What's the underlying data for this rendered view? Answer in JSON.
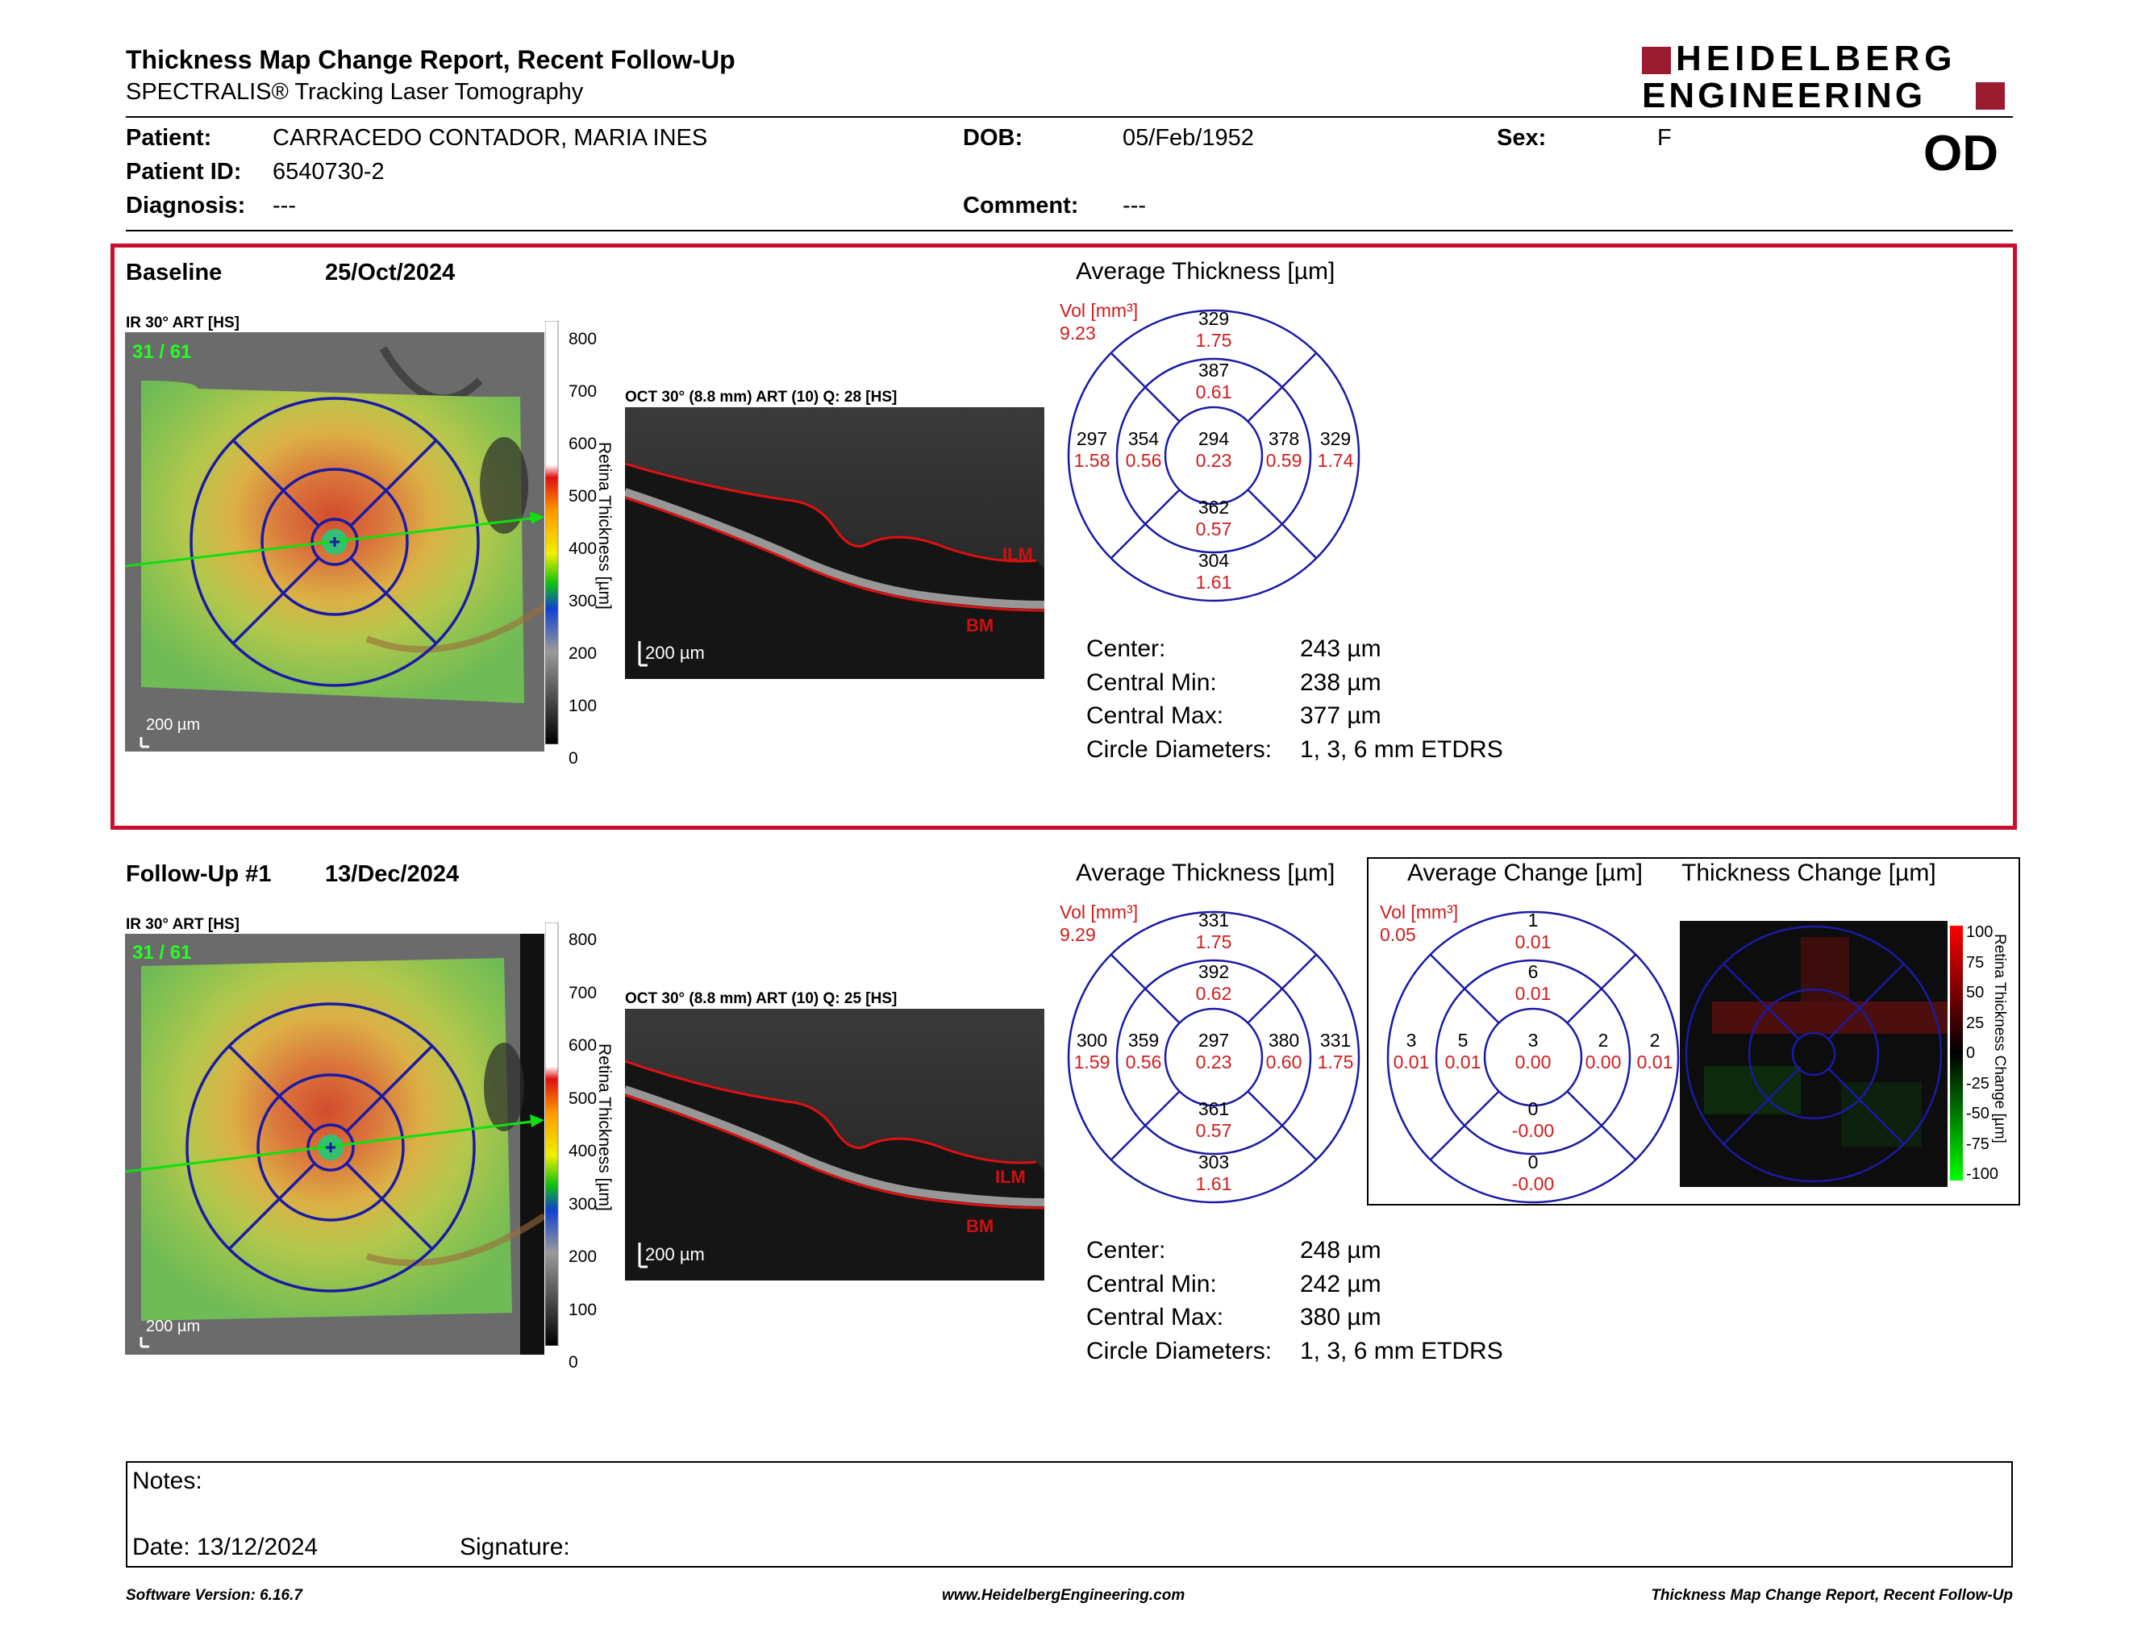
{
  "header": {
    "title": "Thickness Map Change Report, Recent Follow-Up",
    "subtitle": "SPECTRALIS® Tracking Laser Tomography",
    "logo_line1": "HEIDELBERG",
    "logo_line2": "ENGINEERING",
    "eye": "OD"
  },
  "patient": {
    "patient_label": "Patient:",
    "patient_value": "CARRACEDO CONTADOR, MARIA INES",
    "id_label": "Patient ID:",
    "id_value": "6540730-2",
    "diagnosis_label": "Diagnosis:",
    "diagnosis_value": "---",
    "dob_label": "DOB:",
    "dob_value": "05/Feb/1952",
    "comment_label": "Comment:",
    "comment_value": "---",
    "sex_label": "Sex:",
    "sex_value": "F"
  },
  "baseline": {
    "label": "Baseline",
    "date": "25/Oct/2024",
    "ir_label": "IR 30° ART [HS]",
    "counter": "31 / 61",
    "scale": "200 µm",
    "oct_label": "OCT 30° (8.8 mm) ART (10) Q: 28 [HS]",
    "oct_scale": "200 µm",
    "ilm": "ILM",
    "bm": "BM",
    "colorbar_ticks": [
      "800",
      "700",
      "600",
      "500",
      "400",
      "300",
      "200",
      "100",
      "0"
    ],
    "colorbar_title": "Retina Thickness [µm]",
    "avg_title": "Average Thickness [µm]",
    "vol_label": "Vol [mm³]",
    "vol_value": "9.23",
    "grid": {
      "outer_top": [
        "329",
        "1.75"
      ],
      "inner_top": [
        "387",
        "0.61"
      ],
      "outer_left": [
        "297",
        "1.58"
      ],
      "inner_left": [
        "354",
        "0.56"
      ],
      "center": [
        "294",
        "0.23"
      ],
      "inner_right": [
        "378",
        "0.59"
      ],
      "outer_right": [
        "329",
        "1.74"
      ],
      "inner_bottom": [
        "362",
        "0.57"
      ],
      "outer_bottom": [
        "304",
        "1.61"
      ]
    },
    "stats": [
      {
        "label": "Center:",
        "value": "243 µm"
      },
      {
        "label": "Central Min:",
        "value": "238 µm"
      },
      {
        "label": "Central Max:",
        "value": "377 µm"
      },
      {
        "label": "Circle Diameters:",
        "value": "1, 3, 6 mm ETDRS"
      }
    ]
  },
  "followup": {
    "label": "Follow-Up #1",
    "date": "13/Dec/2024",
    "ir_label": "IR 30° ART [HS]",
    "counter": "31 / 61",
    "scale": "200 µm",
    "oct_label": "OCT 30° (8.8 mm) ART (10) Q: 25 [HS]",
    "oct_scale": "200 µm",
    "ilm": "ILM",
    "bm": "BM",
    "colorbar_ticks": [
      "800",
      "700",
      "600",
      "500",
      "400",
      "300",
      "200",
      "100",
      "0"
    ],
    "colorbar_title": "Retina Thickness [µm]",
    "avg_title": "Average Thickness [µm]",
    "vol_label": "Vol [mm³]",
    "vol_value": "9.29",
    "grid": {
      "outer_top": [
        "331",
        "1.75"
      ],
      "inner_top": [
        "392",
        "0.62"
      ],
      "outer_left": [
        "300",
        "1.59"
      ],
      "inner_left": [
        "359",
        "0.56"
      ],
      "center": [
        "297",
        "0.23"
      ],
      "inner_right": [
        "380",
        "0.60"
      ],
      "outer_right": [
        "331",
        "1.75"
      ],
      "inner_bottom": [
        "361",
        "0.57"
      ],
      "outer_bottom": [
        "303",
        "1.61"
      ]
    },
    "stats": [
      {
        "label": "Center:",
        "value": "248 µm"
      },
      {
        "label": "Central Min:",
        "value": "242 µm"
      },
      {
        "label": "Central Max:",
        "value": "380 µm"
      },
      {
        "label": "Circle Diameters:",
        "value": "1, 3, 6 mm ETDRS"
      }
    ],
    "change_title": "Average Change [µm]",
    "change_vol_label": "Vol [mm³]",
    "change_vol_value": "0.05",
    "change_grid": {
      "outer_top": [
        "1",
        "0.01"
      ],
      "inner_top": [
        "6",
        "0.01"
      ],
      "outer_left": [
        "3",
        "0.01"
      ],
      "inner_left": [
        "5",
        "0.01"
      ],
      "center": [
        "3",
        "0.00"
      ],
      "inner_right": [
        "2",
        "0.00"
      ],
      "outer_right": [
        "2",
        "0.01"
      ],
      "inner_bottom": [
        "0",
        "-0.00"
      ],
      "outer_bottom": [
        "0",
        "-0.00"
      ]
    },
    "thickness_change_title": "Thickness Change [µm]",
    "change_ticks": [
      "100",
      "75",
      "50",
      "25",
      "0",
      "-25",
      "-50",
      "-75",
      "-100"
    ],
    "change_colorbar_title": "Retina Thickness Change [µm]"
  },
  "notes": {
    "notes_label": "Notes:",
    "date_label": "Date: 13/12/2024",
    "signature_label": "Signature:"
  },
  "footer": {
    "software": "Software Version: 6.16.7",
    "website": "www.HeidelbergEngineering.com",
    "report": "Thickness Map Change Report, Recent Follow-Up"
  },
  "colors": {
    "accent_red": "#c8102e",
    "grid_blue": "#1a1aa6",
    "value_red": "#d01c1c",
    "logo_red": "#9b1b30"
  }
}
